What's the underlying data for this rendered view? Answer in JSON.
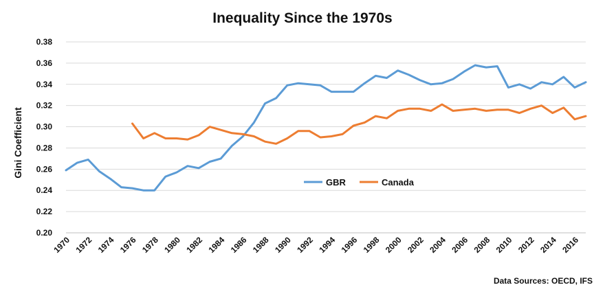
{
  "chart_data": {
    "type": "line",
    "title": "Inequality Since the 1970s",
    "xlabel": "",
    "ylabel": "Gini Coefficient",
    "source": "Data Sources: OECD, IFS",
    "ylim": [
      0.2,
      0.38
    ],
    "xlim": [
      1970,
      2017
    ],
    "y_ticks": [
      "0.20",
      "0.22",
      "0.24",
      "0.26",
      "0.28",
      "0.30",
      "0.32",
      "0.34",
      "0.36",
      "0.38"
    ],
    "x_ticks": [
      "1970",
      "1972",
      "1974",
      "1976",
      "1978",
      "1980",
      "1982",
      "1984",
      "1986",
      "1988",
      "1990",
      "1992",
      "1994",
      "1996",
      "1998",
      "2000",
      "2002",
      "2004",
      "2006",
      "2008",
      "2010",
      "2012",
      "2014",
      "2016"
    ],
    "grid": "horizontal",
    "legend_position": "center",
    "series": [
      {
        "name": "GBR",
        "color": "#5b9bd5",
        "x": [
          1970,
          1971,
          1972,
          1973,
          1974,
          1975,
          1976,
          1977,
          1978,
          1979,
          1980,
          1981,
          1982,
          1983,
          1984,
          1985,
          1986,
          1987,
          1988,
          1989,
          1990,
          1991,
          1992,
          1993,
          1994,
          1995,
          1996,
          1997,
          1998,
          1999,
          2000,
          2001,
          2002,
          2003,
          2004,
          2005,
          2006,
          2007,
          2008,
          2009,
          2010,
          2011,
          2012,
          2013,
          2014,
          2015,
          2016,
          2017
        ],
        "values": [
          0.259,
          0.266,
          0.269,
          0.258,
          0.251,
          0.243,
          0.242,
          0.24,
          0.24,
          0.253,
          0.257,
          0.263,
          0.261,
          0.267,
          0.27,
          0.282,
          0.291,
          0.304,
          0.322,
          0.327,
          0.339,
          0.341,
          0.34,
          0.339,
          0.333,
          0.333,
          0.333,
          0.341,
          0.348,
          0.346,
          0.353,
          0.349,
          0.344,
          0.34,
          0.341,
          0.345,
          0.352,
          0.358,
          0.356,
          0.357,
          0.337,
          0.34,
          0.336,
          0.342,
          0.34,
          0.347,
          0.337,
          0.342
        ]
      },
      {
        "name": "Canada",
        "color": "#ed7d31",
        "x": [
          1976,
          1977,
          1978,
          1979,
          1980,
          1981,
          1982,
          1983,
          1984,
          1985,
          1986,
          1987,
          1988,
          1989,
          1990,
          1991,
          1992,
          1993,
          1994,
          1995,
          1996,
          1997,
          1998,
          1999,
          2000,
          2001,
          2002,
          2003,
          2004,
          2005,
          2006,
          2007,
          2008,
          2009,
          2010,
          2011,
          2012,
          2013,
          2014,
          2015,
          2016,
          2017
        ],
        "values": [
          0.303,
          0.289,
          0.294,
          0.289,
          0.289,
          0.288,
          0.292,
          0.3,
          0.297,
          0.294,
          0.293,
          0.291,
          0.286,
          0.284,
          0.289,
          0.296,
          0.296,
          0.29,
          0.291,
          0.293,
          0.301,
          0.304,
          0.31,
          0.308,
          0.315,
          0.317,
          0.317,
          0.315,
          0.321,
          0.315,
          0.316,
          0.317,
          0.315,
          0.316,
          0.316,
          0.313,
          0.317,
          0.32,
          0.313,
          0.318,
          0.307,
          0.31
        ]
      }
    ]
  }
}
